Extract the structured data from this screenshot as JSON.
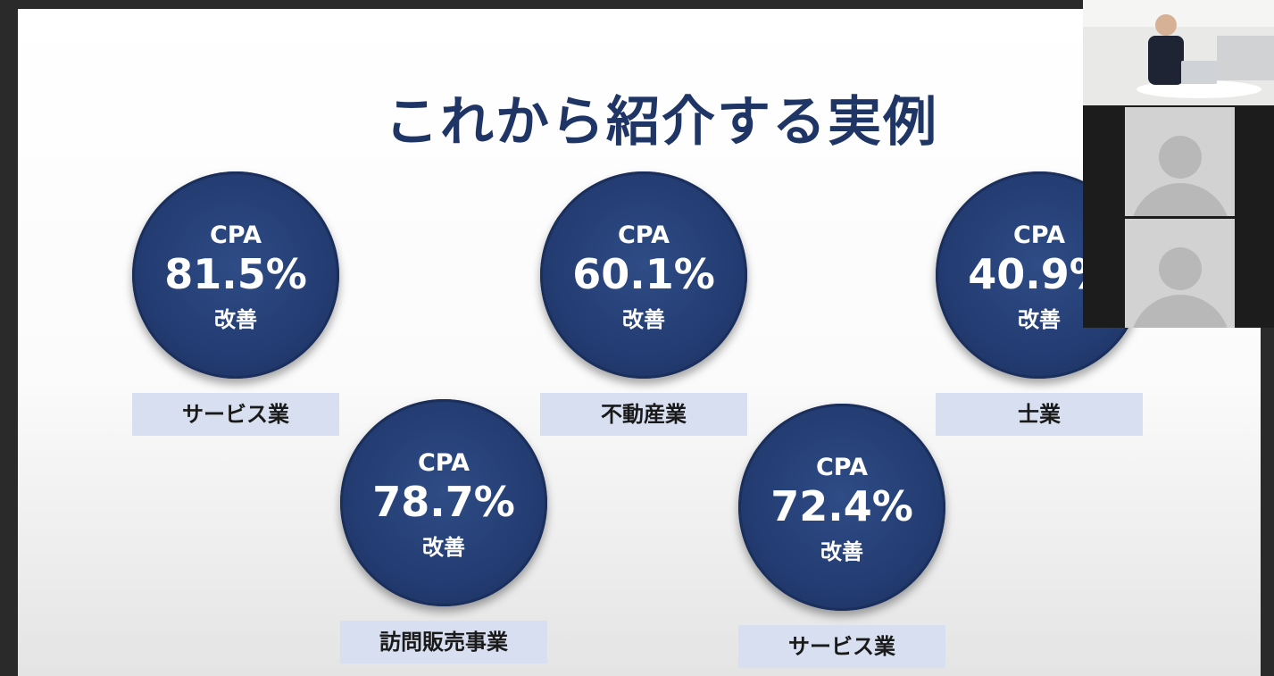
{
  "slide": {
    "title": "これから紹介する実例",
    "cases": [
      {
        "metric": "CPA",
        "value": "81.5%",
        "note": "改善",
        "industry": "サービス業"
      },
      {
        "metric": "CPA",
        "value": "60.1%",
        "note": "改善",
        "industry": "不動産業"
      },
      {
        "metric": "CPA",
        "value": "40.9%",
        "note": "改善",
        "industry": "士業"
      },
      {
        "metric": "CPA",
        "value": "78.7%",
        "note": "改善",
        "industry": "訪問販売事業"
      },
      {
        "metric": "CPA",
        "value": "72.4%",
        "note": "改善",
        "industry": "サービス業"
      }
    ]
  }
}
